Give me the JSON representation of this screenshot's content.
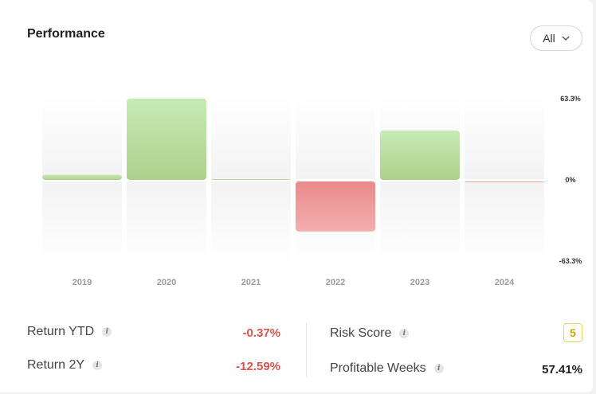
{
  "header": {
    "title": "Performance",
    "filter_label": "All"
  },
  "chart_data": {
    "type": "bar",
    "categories": [
      "2019",
      "2020",
      "2021",
      "2022",
      "2023",
      "2024"
    ],
    "values": [
      3.9,
      61.0,
      0.4,
      -37.5,
      37.0,
      -0.37
    ],
    "y_tick_labels": {
      "max": "63.3%",
      "zero": "0%",
      "min": "-63.3%"
    },
    "ylim": [
      -63.3,
      63.3
    ],
    "positive_color": "#b2d98f",
    "negative_color": "#ef8e8e"
  },
  "stats": {
    "return_ytd": {
      "label": "Return YTD",
      "value": "-0.37%"
    },
    "return_2y": {
      "label": "Return 2Y",
      "value": "-12.59%"
    },
    "risk_score": {
      "label": "Risk Score",
      "value": "5"
    },
    "profitable_weeks": {
      "label": "Profitable Weeks",
      "value": "57.41%"
    }
  },
  "icons": {
    "info": "i",
    "dropdown": "chevron-down-icon"
  }
}
